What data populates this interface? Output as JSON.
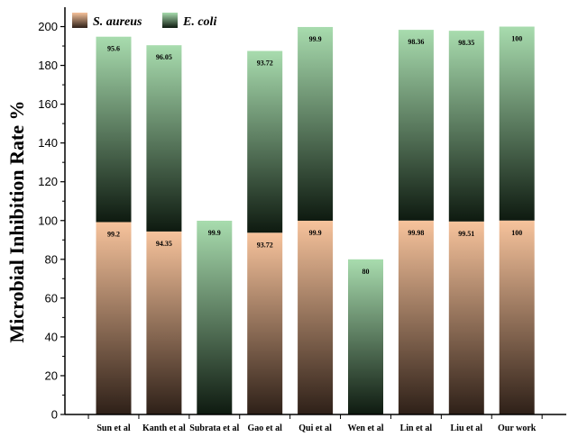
{
  "chart_data": {
    "type": "bar",
    "stacked": true,
    "categories": [
      "Sun et al",
      "Kanth et al",
      "Subrata et al",
      "Gao et al",
      "Qui et al",
      "Wen et al",
      "Lin et al",
      "Liu et al",
      "Our work"
    ],
    "series": [
      {
        "name": "S. aureus",
        "values": [
          99.2,
          94.35,
          null,
          93.72,
          99.9,
          null,
          99.98,
          99.51,
          100
        ],
        "labels": [
          "99.2",
          "94.35",
          "",
          "93.72",
          "99.9",
          "",
          "99.98",
          "99.51",
          "100"
        ],
        "color_top": "#f7c39c",
        "color_bottom": "#2e2018"
      },
      {
        "name": "E. coli",
        "values": [
          95.6,
          96.05,
          99.9,
          93.72,
          99.9,
          80,
          98.36,
          98.35,
          100
        ],
        "labels": [
          "95.6",
          "96.05",
          "99.9",
          "93.72",
          "99.9",
          "80",
          "98.36",
          "98.35",
          "100"
        ],
        "color_top": "#a8dcae",
        "color_bottom": "#0e1a10"
      }
    ],
    "ylabel": "Microbial Inhibition Rate %",
    "xlabel": "",
    "ylim": [
      0,
      210
    ],
    "yticks": [
      0,
      20,
      40,
      60,
      80,
      100,
      120,
      140,
      160,
      180,
      200
    ],
    "legend_position": "top-left",
    "grid": false
  }
}
